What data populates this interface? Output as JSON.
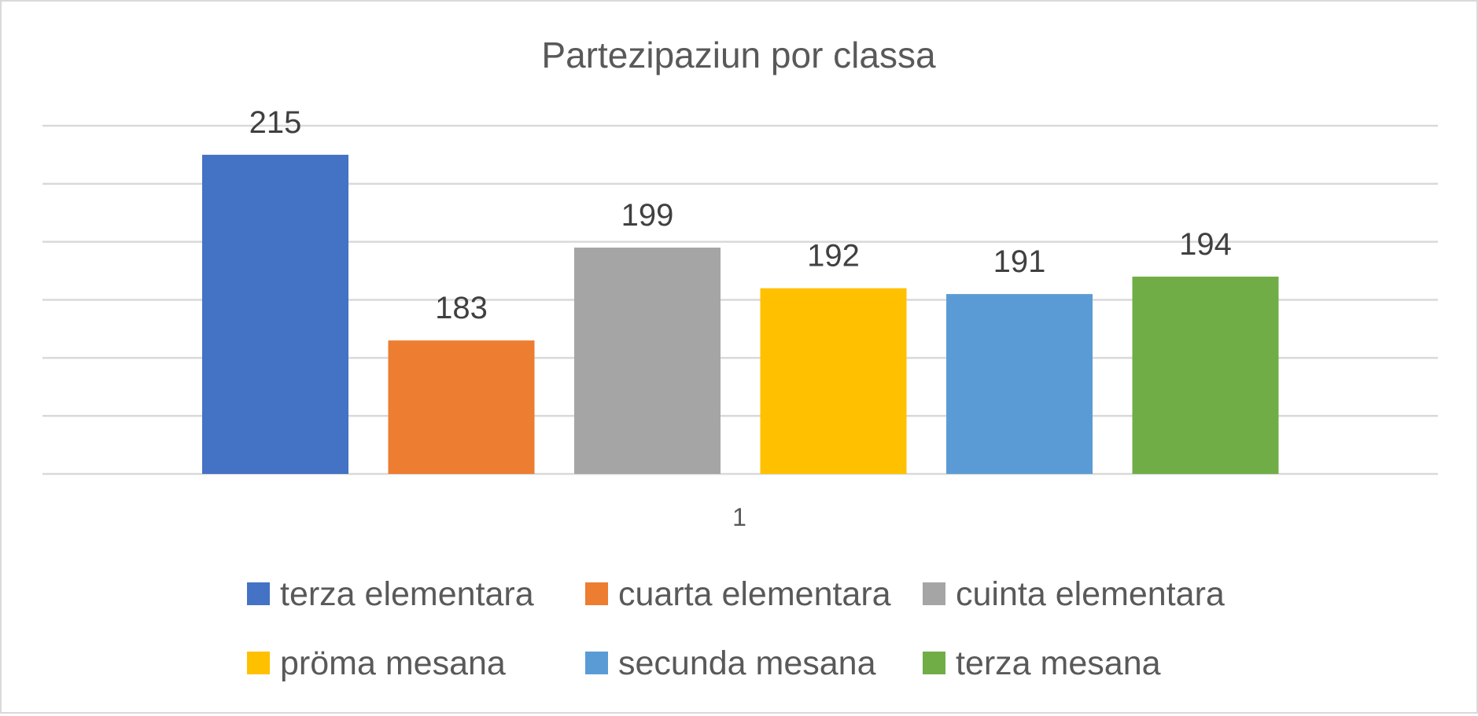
{
  "chart_data": {
    "type": "bar",
    "title": "Partezipaziun por classa",
    "xlabel": "",
    "ylabel": "",
    "categories": [
      "1"
    ],
    "series": [
      {
        "name": "terza elementara",
        "values": [
          215
        ],
        "color": "#4472C4"
      },
      {
        "name": "cuarta elementara",
        "values": [
          183
        ],
        "color": "#ED7D31"
      },
      {
        "name": "cuinta elementara",
        "values": [
          199
        ],
        "color": "#A5A5A5"
      },
      {
        "name": "pröma mesana",
        "values": [
          192
        ],
        "color": "#FFC000"
      },
      {
        "name": "secunda mesana",
        "values": [
          191
        ],
        "color": "#5B9BD5"
      },
      {
        "name": "terza mesana",
        "values": [
          194
        ],
        "color": "#70AD47"
      }
    ],
    "ylim": [
      160,
      220
    ],
    "grid": true,
    "legend_position": "bottom"
  }
}
